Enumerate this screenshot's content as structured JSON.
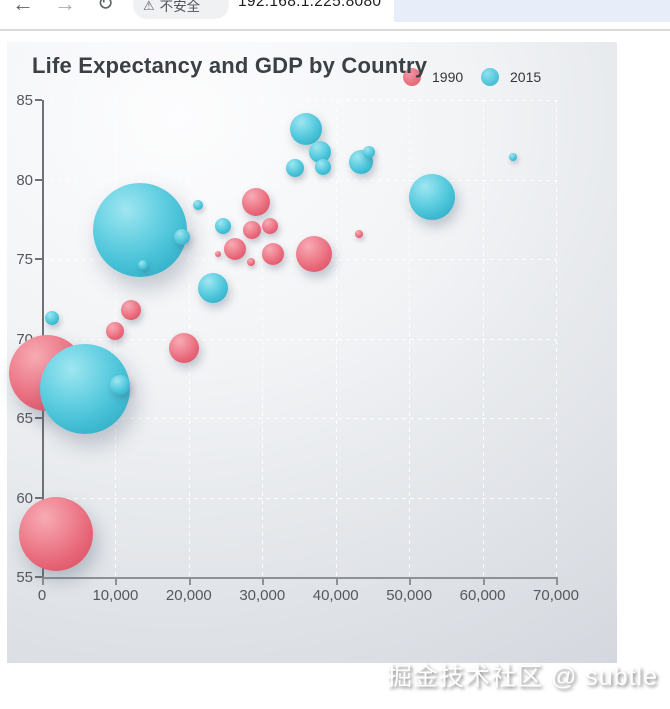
{
  "browser": {
    "icons": {
      "back": "←",
      "forward": "→",
      "reload": "↻",
      "warning": "⚠"
    },
    "security_chip_label": "不安全",
    "url": "192.168.1.225:8080"
  },
  "chart": {
    "title": "Life Expectancy and GDP by Country"
  },
  "chart_data": {
    "type": "scatter",
    "title": "Life Expectancy and GDP by Country",
    "xlabel": "",
    "ylabel": "",
    "xlim": [
      0,
      70000
    ],
    "ylim": [
      55,
      85
    ],
    "x_ticks": [
      0,
      10000,
      20000,
      30000,
      40000,
      50000,
      60000,
      70000
    ],
    "x_tick_labels": [
      "0",
      "10,000",
      "20,000",
      "30,000",
      "40,000",
      "50,000",
      "60,000",
      "70,000"
    ],
    "y_ticks": [
      55,
      60,
      65,
      70,
      75,
      80,
      85
    ],
    "grid": true,
    "grid_style": "white dashed",
    "legend_position": "top-right",
    "series": [
      {
        "name": "1990",
        "color": "#e9707e",
        "points": [
          {
            "gdp": 680,
            "life_expectancy": 67.8,
            "r": 38
          },
          {
            "gdp": 1900,
            "life_expectancy": 57.7,
            "r": 37
          },
          {
            "gdp": 9950,
            "life_expectancy": 70.5,
            "r": 9
          },
          {
            "gdp": 12130,
            "life_expectancy": 71.8,
            "r": 10
          },
          {
            "gdp": 19350,
            "life_expectancy": 69.4,
            "r": 15
          },
          {
            "gdp": 29160,
            "life_expectancy": 78.6,
            "r": 14
          },
          {
            "gdp": 28610,
            "life_expectancy": 76.8,
            "r": 9
          },
          {
            "gdp": 31060,
            "life_expectancy": 77.1,
            "r": 8
          },
          {
            "gdp": 26290,
            "life_expectancy": 75.6,
            "r": 11
          },
          {
            "gdp": 23980,
            "life_expectancy": 75.3,
            "r": 3
          },
          {
            "gdp": 31470,
            "life_expectancy": 75.3,
            "r": 11
          },
          {
            "gdp": 37060,
            "life_expectancy": 75.3,
            "r": 18
          },
          {
            "gdp": 43190,
            "life_expectancy": 76.6,
            "r": 4
          },
          {
            "gdp": 28470,
            "life_expectancy": 74.8,
            "r": 4
          }
        ]
      },
      {
        "name": "2015",
        "color": "#52c5da",
        "points": [
          {
            "gdp": 13350,
            "life_expectancy": 76.8,
            "r": 47
          },
          {
            "gdp": 19070,
            "life_expectancy": 76.4,
            "r": 8
          },
          {
            "gdp": 35970,
            "life_expectancy": 83.2,
            "r": 16
          },
          {
            "gdp": 37870,
            "life_expectancy": 81.7,
            "r": 11
          },
          {
            "gdp": 38280,
            "life_expectancy": 80.8,
            "r": 8
          },
          {
            "gdp": 34470,
            "life_expectancy": 80.7,
            "r": 9
          },
          {
            "gdp": 43460,
            "life_expectancy": 81.1,
            "r": 12
          },
          {
            "gdp": 44550,
            "life_expectancy": 81.7,
            "r": 6
          },
          {
            "gdp": 53130,
            "life_expectancy": 78.9,
            "r": 23
          },
          {
            "gdp": 64170,
            "life_expectancy": 81.4,
            "r": 4
          },
          {
            "gdp": 24660,
            "life_expectancy": 77.1,
            "r": 8
          },
          {
            "gdp": 1360,
            "life_expectancy": 71.3,
            "r": 7
          },
          {
            "gdp": 5860,
            "life_expectancy": 66.8,
            "r": 45
          },
          {
            "gdp": 10630,
            "life_expectancy": 67.1,
            "r": 10
          },
          {
            "gdp": 23300,
            "life_expectancy": 73.2,
            "r": 15
          },
          {
            "gdp": 21250,
            "life_expectancy": 78.4,
            "r": 5
          },
          {
            "gdp": 13760,
            "life_expectancy": 74.6,
            "r": 5
          }
        ]
      }
    ]
  },
  "watermark": "掘金技术社区 @ subtle"
}
